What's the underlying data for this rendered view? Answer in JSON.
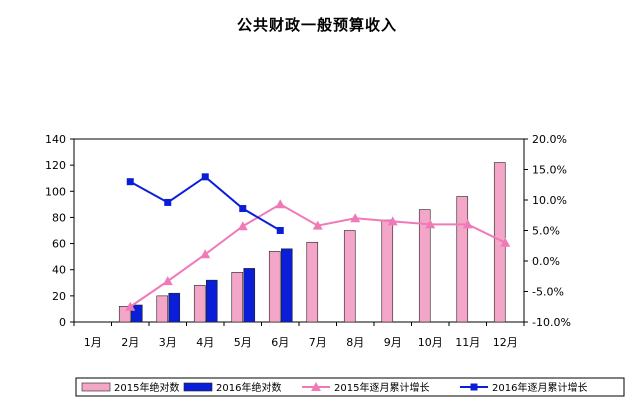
{
  "chart_data": {
    "type": "bar",
    "title": "公共财政一般预算收入",
    "categories": [
      "1月",
      "2月",
      "3月",
      "4月",
      "5月",
      "6月",
      "7月",
      "8月",
      "9月",
      "10月",
      "11月",
      "12月"
    ],
    "y_left": {
      "min": 0,
      "max": 140,
      "step": 20,
      "ticks": [
        "0",
        "20",
        "40",
        "60",
        "80",
        "100",
        "120",
        "140"
      ]
    },
    "y_right": {
      "min": -10.0,
      "max": 20.0,
      "step": 5.0,
      "ticks": [
        "-10.0%",
        "-5.0%",
        "0.0%",
        "5.0%",
        "10.0%",
        "15.0%",
        "20.0%"
      ]
    },
    "grid": false,
    "legend_position": "bottom",
    "series": [
      {
        "name": "2015年绝对数",
        "type": "bar",
        "axis": "left",
        "color": "#f4a6c8",
        "values": [
          null,
          12,
          20,
          28,
          38,
          54,
          61,
          70,
          78,
          86,
          96,
          122
        ]
      },
      {
        "name": "2016年绝对数",
        "type": "bar",
        "axis": "left",
        "color": "#0a1ed8",
        "values": [
          null,
          13,
          22,
          32,
          41,
          56,
          null,
          null,
          null,
          null,
          null,
          null
        ]
      },
      {
        "name": "2015年逐月累计增长",
        "type": "line",
        "axis": "right",
        "color": "#f07ab8",
        "marker": "triangle",
        "values": [
          null,
          -7.5,
          -3.3,
          1.1,
          5.7,
          9.3,
          5.8,
          7.0,
          6.5,
          6.0,
          6.0,
          3.0
        ]
      },
      {
        "name": "2016年逐月累计增长",
        "type": "line",
        "axis": "right",
        "color": "#0a1ed8",
        "marker": "square",
        "values": [
          null,
          13.0,
          9.6,
          13.8,
          8.6,
          5.0,
          null,
          null,
          null,
          null,
          null,
          null
        ]
      }
    ]
  }
}
